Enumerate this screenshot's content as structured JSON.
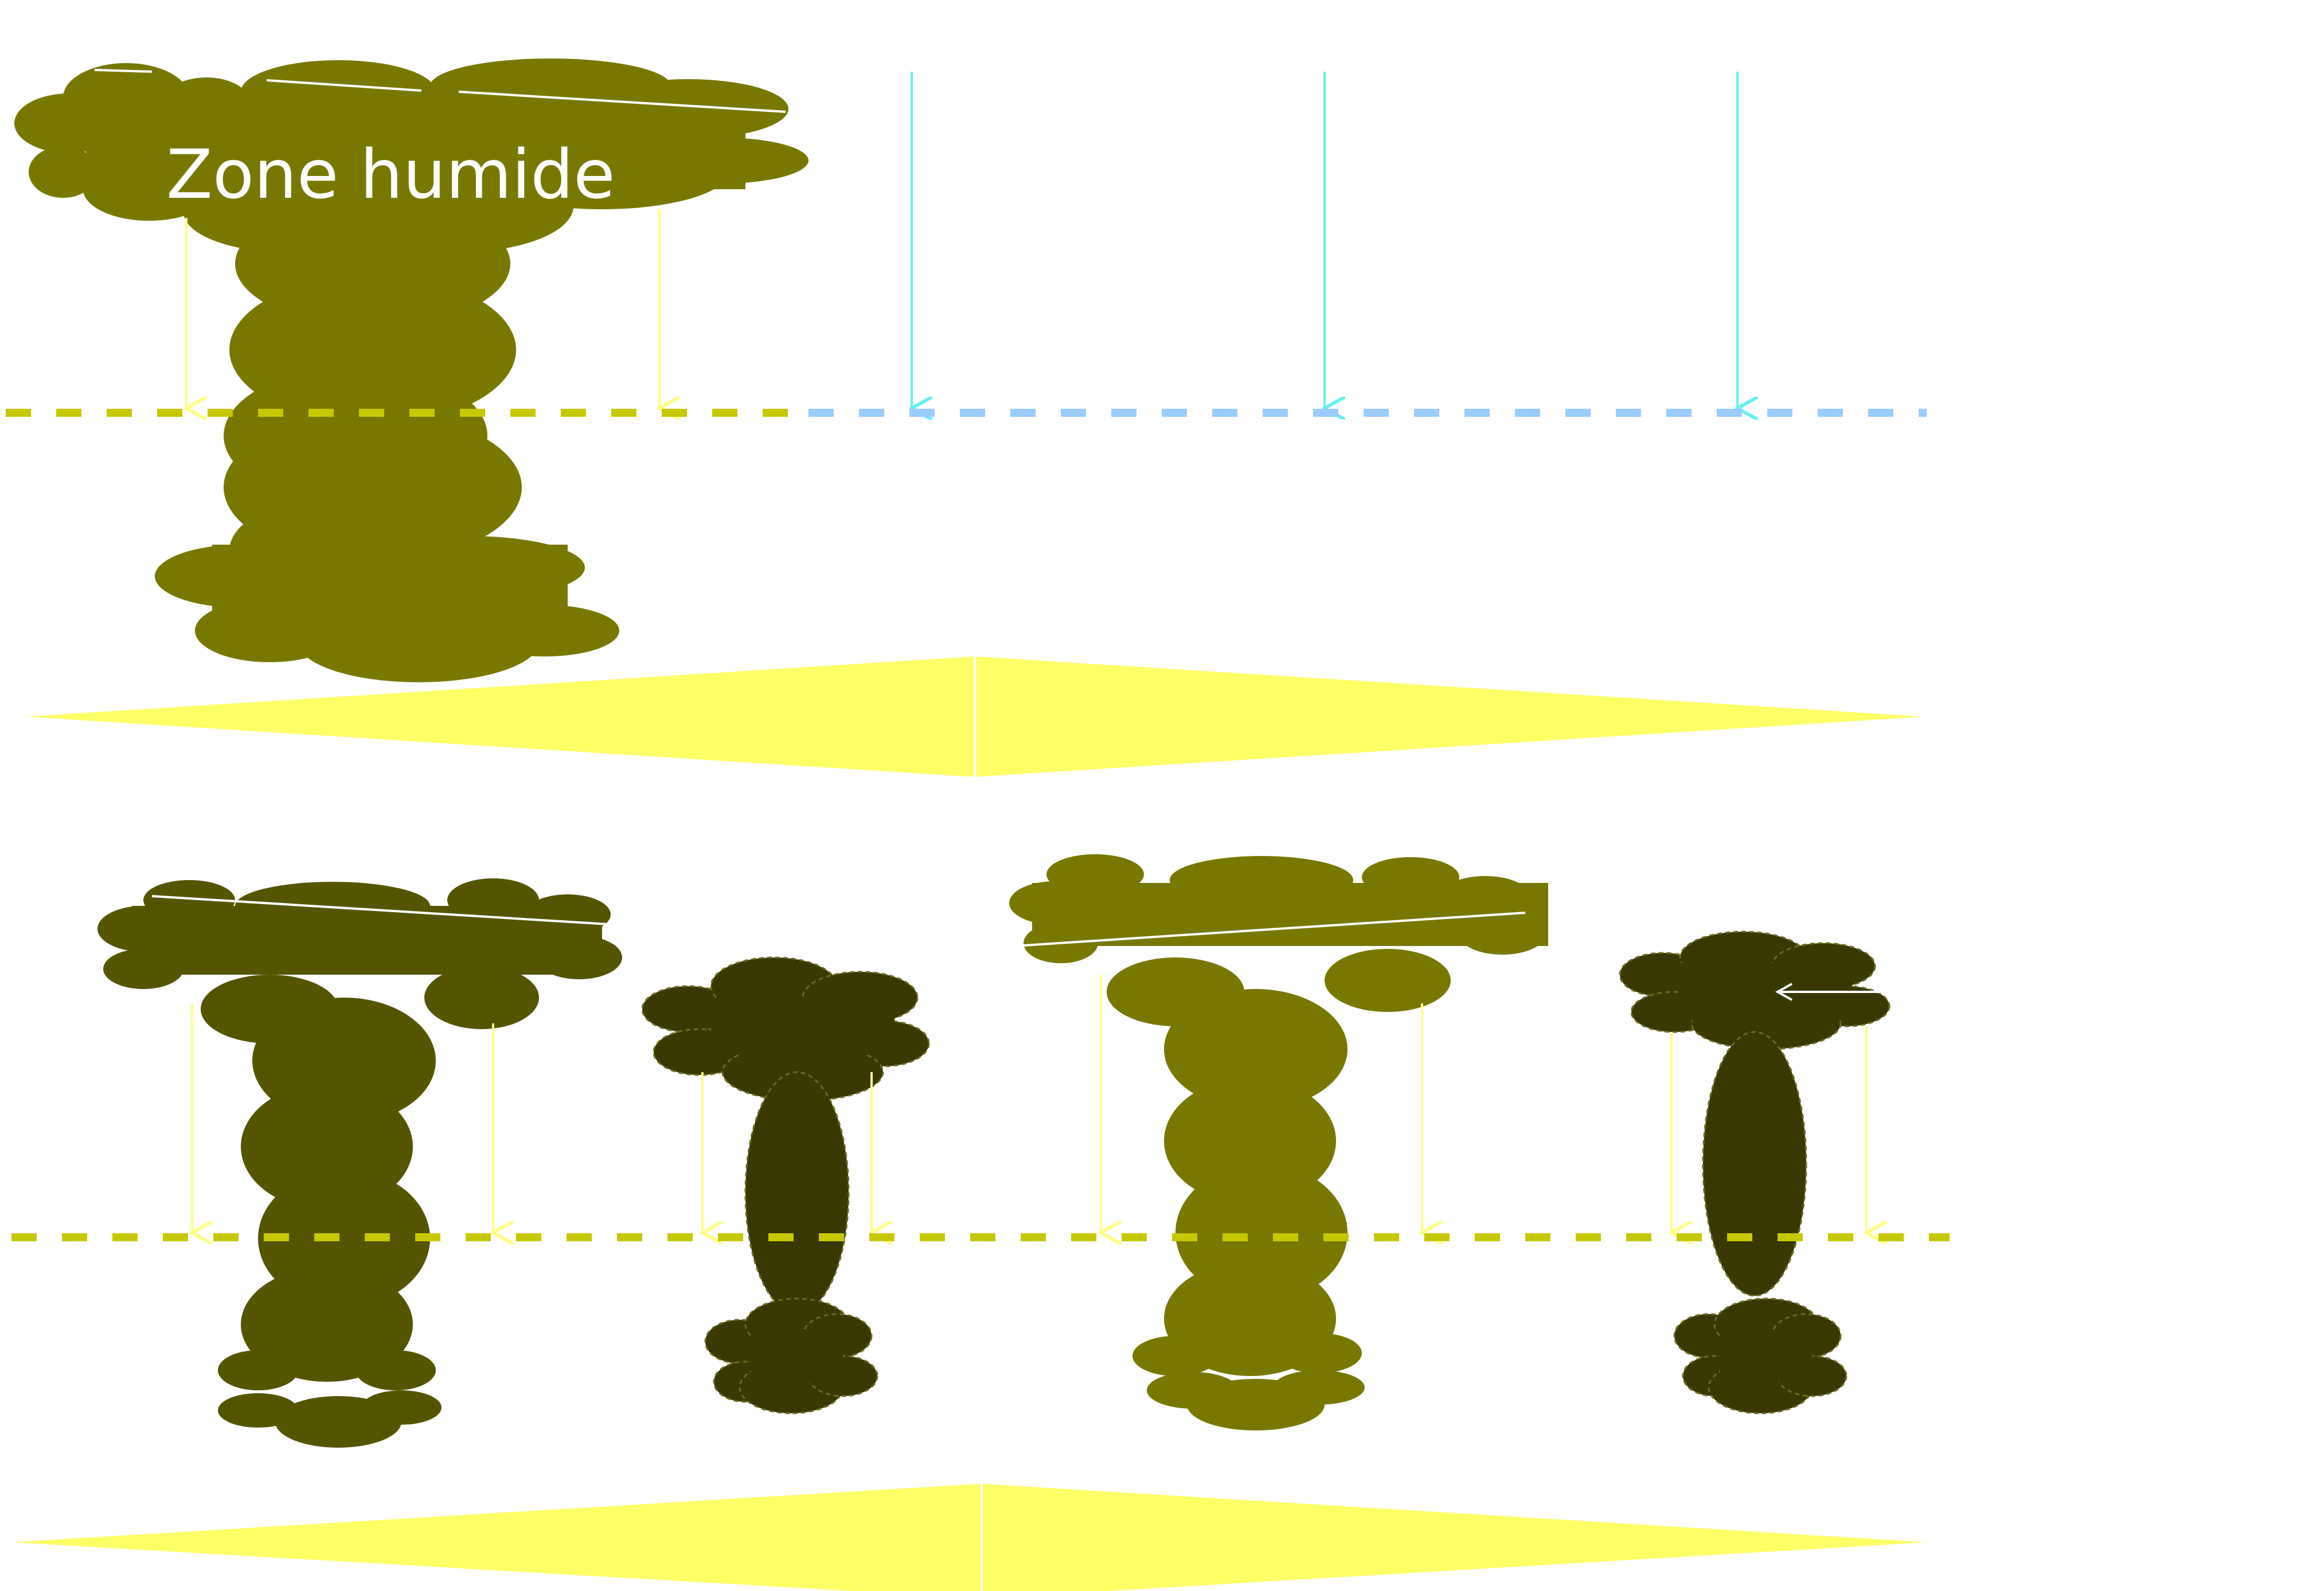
{
  "diagram": {
    "label": "Zone humide",
    "colors": {
      "cloud_olive": "#787800",
      "cloud_dark_olive": "#555500",
      "cloud_very_dark": "#383800",
      "ground_yellow": "#ffff66",
      "dashed_yellow": "#c8c800",
      "dashed_blue": "#99ccff",
      "arrow_yellow": "#ffff88",
      "arrow_cyan": "#66f0f0",
      "label_text": "#ffffff"
    }
  }
}
